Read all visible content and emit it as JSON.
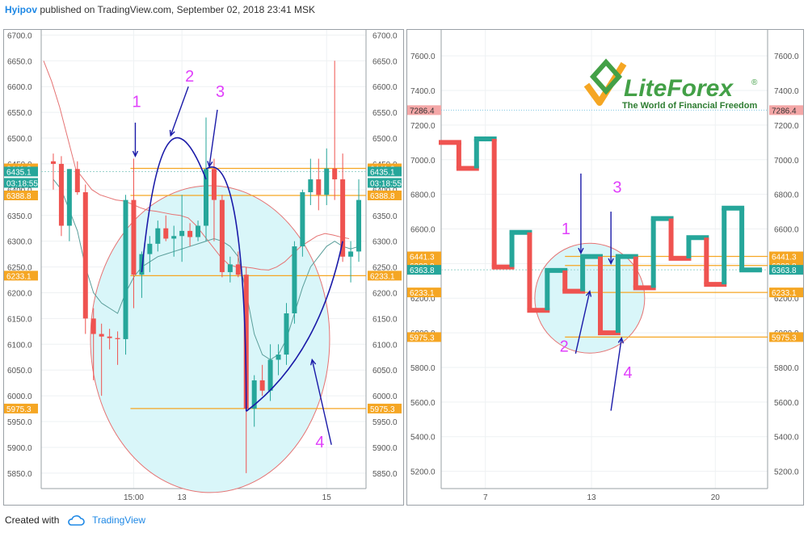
{
  "header": {
    "author": "Hyipov",
    "published_text": "published on TradingView.com, September 02, 2018 23:41 MSK"
  },
  "footer": {
    "created_with": "Created with",
    "brand": "TradingView"
  },
  "colors": {
    "up": "#26a69a",
    "down": "#ef5350",
    "level": "#f5a623",
    "annotation_blue": "#1a1aa8",
    "annotation_magenta": "#e040fb",
    "ellipse_fill": "#d9f6f9",
    "ellipse_stroke": "#e57373",
    "current_badge": "#26a69a",
    "red_badge": "#f4a7a7"
  },
  "chart_data": [
    {
      "type": "candlestick",
      "name": "left",
      "ylim": [
        5820,
        6710
      ],
      "yticks": [
        "6700.0",
        "6650.0",
        "6600.0",
        "6550.0",
        "6500.0",
        "6450.0",
        "6400.0",
        "6350.0",
        "6300.0",
        "6250.0",
        "6200.0",
        "6150.0",
        "6100.0",
        "6050.0",
        "6000.0",
        "5950.0",
        "5900.0",
        "5850.0"
      ],
      "xlabels": [
        {
          "label": "15:00",
          "i": 10
        },
        {
          "label": "13",
          "i": 16
        },
        {
          "label": "15",
          "i": 34
        }
      ],
      "candles": [
        {
          "o": 6455,
          "h": 6470,
          "l": 6400,
          "c": 6450
        },
        {
          "o": 6450,
          "h": 6465,
          "l": 6310,
          "c": 6330
        },
        {
          "o": 6330,
          "h": 6440,
          "l": 6300,
          "c": 6440
        },
        {
          "o": 6440,
          "h": 6455,
          "l": 6390,
          "c": 6395
        },
        {
          "o": 6395,
          "h": 6410,
          "l": 6120,
          "c": 6150
        },
        {
          "o": 6150,
          "h": 6170,
          "l": 6030,
          "c": 6120
        },
        {
          "o": 6120,
          "h": 6140,
          "l": 6000,
          "c": 6115
        },
        {
          "o": 6115,
          "h": 6130,
          "l": 6090,
          "c": 6112
        },
        {
          "o": 6112,
          "h": 6125,
          "l": 6060,
          "c": 6110
        },
        {
          "o": 6110,
          "h": 6390,
          "l": 6080,
          "c": 6380
        },
        {
          "o": 6380,
          "h": 6460,
          "l": 6170,
          "c": 6235
        },
        {
          "o": 6235,
          "h": 6280,
          "l": 6190,
          "c": 6275
        },
        {
          "o": 6275,
          "h": 6310,
          "l": 6240,
          "c": 6295
        },
        {
          "o": 6295,
          "h": 6340,
          "l": 6280,
          "c": 6325
        },
        {
          "o": 6325,
          "h": 6350,
          "l": 6300,
          "c": 6305
        },
        {
          "o": 6305,
          "h": 6330,
          "l": 6270,
          "c": 6310
        },
        {
          "o": 6310,
          "h": 6390,
          "l": 6260,
          "c": 6320
        },
        {
          "o": 6320,
          "h": 6335,
          "l": 6290,
          "c": 6308
        },
        {
          "o": 6308,
          "h": 6340,
          "l": 6300,
          "c": 6330
        },
        {
          "o": 6330,
          "h": 6540,
          "l": 6300,
          "c": 6440
        },
        {
          "o": 6440,
          "h": 6460,
          "l": 6300,
          "c": 6380
        },
        {
          "o": 6380,
          "h": 6390,
          "l": 6230,
          "c": 6240
        },
        {
          "o": 6240,
          "h": 6270,
          "l": 6220,
          "c": 6255
        },
        {
          "o": 6255,
          "h": 6280,
          "l": 6230,
          "c": 6235
        },
        {
          "o": 6235,
          "h": 6250,
          "l": 5850,
          "c": 5975
        },
        {
          "o": 5975,
          "h": 6040,
          "l": 5940,
          "c": 6030
        },
        {
          "o": 6030,
          "h": 6060,
          "l": 6000,
          "c": 6010
        },
        {
          "o": 6010,
          "h": 6100,
          "l": 5990,
          "c": 6070
        },
        {
          "o": 6070,
          "h": 6100,
          "l": 6040,
          "c": 6080
        },
        {
          "o": 6080,
          "h": 6180,
          "l": 6060,
          "c": 6160
        },
        {
          "o": 6160,
          "h": 6300,
          "l": 6140,
          "c": 6290
        },
        {
          "o": 6290,
          "h": 6400,
          "l": 6270,
          "c": 6395
        },
        {
          "o": 6395,
          "h": 6460,
          "l": 6370,
          "c": 6420
        },
        {
          "o": 6420,
          "h": 6460,
          "l": 6360,
          "c": 6390
        },
        {
          "o": 6390,
          "h": 6480,
          "l": 6370,
          "c": 6441
        },
        {
          "o": 6441,
          "h": 6650,
          "l": 6380,
          "c": 6420
        },
        {
          "o": 6420,
          "h": 6470,
          "l": 6260,
          "c": 6270
        },
        {
          "o": 6270,
          "h": 6300,
          "l": 6220,
          "c": 6280
        },
        {
          "o": 6280,
          "h": 6420,
          "l": 6260,
          "c": 6380
        }
      ],
      "levels": [
        {
          "value": 6441.3,
          "label": "6441.3"
        },
        {
          "value": 6388.8,
          "label": "6388.8"
        },
        {
          "value": 6233.1,
          "label": "6233.1"
        },
        {
          "value": 5975.3,
          "label": "5975.3"
        }
      ],
      "current": {
        "value": 6435.1,
        "label": "6435.1",
        "timer": "03:18:55"
      },
      "annotations": [
        "1",
        "2",
        "3",
        "4"
      ]
    },
    {
      "type": "renko",
      "name": "right",
      "ylim": [
        5100,
        7750
      ],
      "yticks": [
        "7600.0",
        "7400.0",
        "7200.0",
        "7000.0",
        "6800.0",
        "6600.0",
        "6400.0",
        "6200.0",
        "6000.0",
        "5800.0",
        "5600.0",
        "5400.0",
        "5200.0"
      ],
      "xlabels": [
        {
          "label": "7",
          "i": 2
        },
        {
          "label": "13",
          "i": 8
        },
        {
          "label": "20",
          "i": 15
        }
      ],
      "steps": [
        {
          "v": 7100,
          "d": "down"
        },
        {
          "v": 6950,
          "d": "down"
        },
        {
          "v": 7120,
          "d": "up"
        },
        {
          "v": 6380,
          "d": "down"
        },
        {
          "v": 6580,
          "d": "up"
        },
        {
          "v": 6130,
          "d": "down"
        },
        {
          "v": 6360,
          "d": "up"
        },
        {
          "v": 6240,
          "d": "down"
        },
        {
          "v": 6441,
          "d": "up"
        },
        {
          "v": 6000,
          "d": "down"
        },
        {
          "v": 6441,
          "d": "up"
        },
        {
          "v": 6260,
          "d": "down"
        },
        {
          "v": 6660,
          "d": "up"
        },
        {
          "v": 6430,
          "d": "down"
        },
        {
          "v": 6550,
          "d": "up"
        },
        {
          "v": 6280,
          "d": "down"
        },
        {
          "v": 6720,
          "d": "up"
        },
        {
          "v": 6363,
          "d": "up"
        }
      ],
      "levels": [
        {
          "value": 6441.3,
          "label": "6441.3"
        },
        {
          "value": 6388.8,
          "label": "6388.8"
        },
        {
          "value": 6233.1,
          "label": "6233.1"
        },
        {
          "value": 5975.3,
          "label": "5975.3"
        }
      ],
      "red_level": {
        "value": 7286.4,
        "label": "7286.4"
      },
      "current": {
        "value": 6363.8,
        "label": "6363.8"
      },
      "annotations": [
        "1",
        "2",
        "3",
        "4"
      ],
      "logo": {
        "brand": "LiteForex",
        "registered": "®",
        "tagline": "The World of Financial Freedom"
      }
    }
  ]
}
